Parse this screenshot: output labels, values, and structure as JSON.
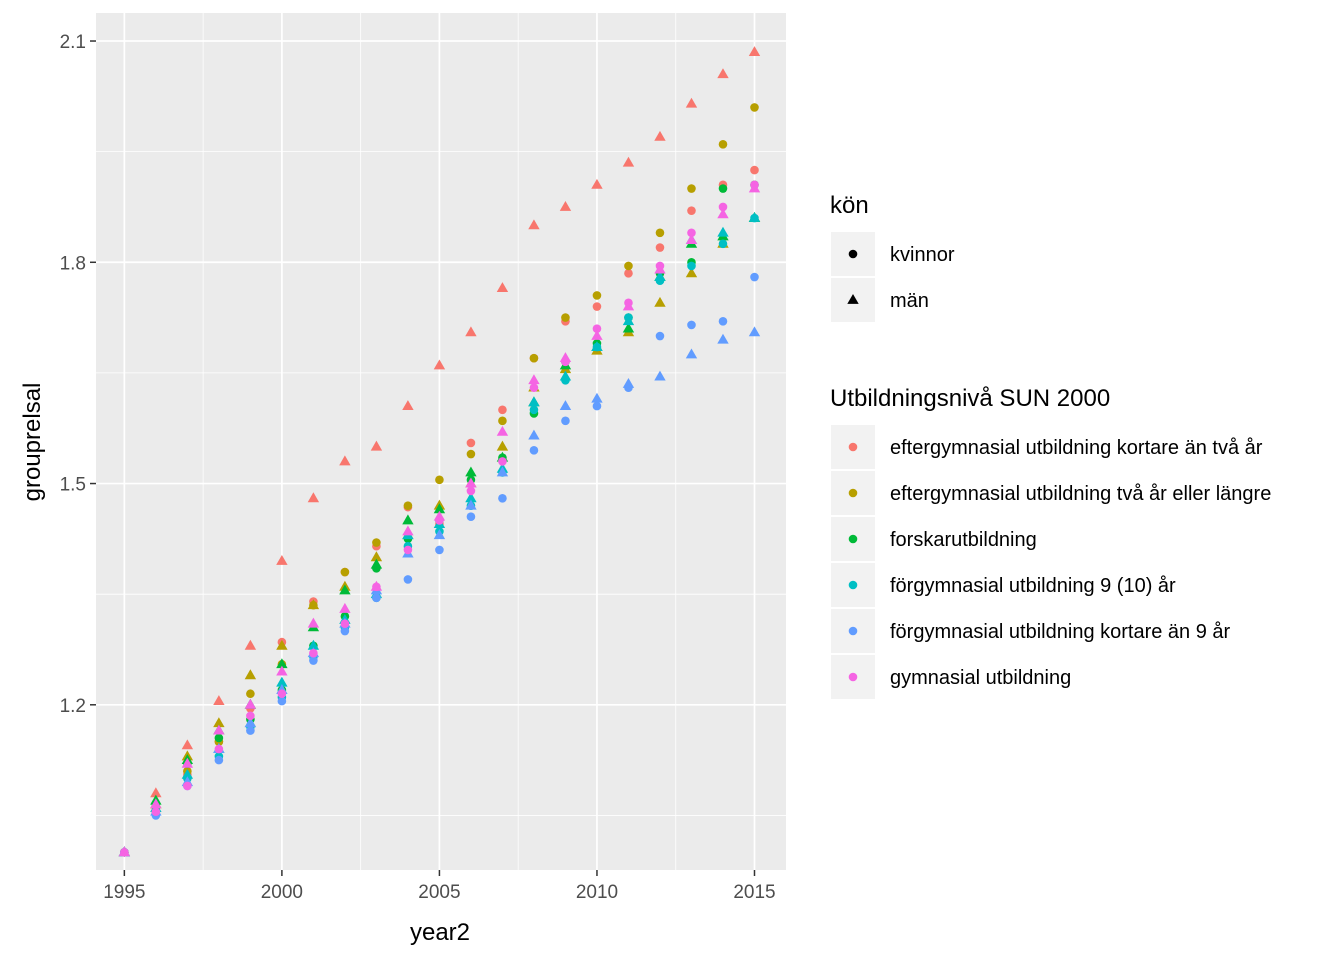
{
  "chart_data": {
    "type": "scatter",
    "title": "",
    "xlabel": "year2",
    "ylabel": "grouprelsal",
    "xlim": [
      1994.1,
      2016
    ],
    "ylim": [
      0.976,
      2.138
    ],
    "x_ticks": [
      "1995",
      "2000",
      "2005",
      "2010",
      "2015"
    ],
    "y_ticks": [
      "1.2",
      "1.5",
      "1.8",
      "2.1"
    ],
    "grid": true,
    "shape_legend": {
      "title": "kön",
      "entries": [
        {
          "label": "kvinnor",
          "shape": "circle"
        },
        {
          "label": "män",
          "shape": "triangle"
        }
      ]
    },
    "color_legend": {
      "title": "Utbildningsnivå SUN 2000",
      "entries": [
        {
          "label": "eftergymnasial utbildning kortare än två år",
          "color": "#F8766D"
        },
        {
          "label": "eftergymnasial utbildning två år eller längre",
          "color": "#B79F00"
        },
        {
          "label": "forskarutbildning",
          "color": "#00BA38"
        },
        {
          "label": "förgymnasial utbildning 9 (10) år",
          "color": "#00BFC4"
        },
        {
          "label": "förgymnasial utbildning kortare än 9 år",
          "color": "#619CFF"
        },
        {
          "label": "gymnasial utbildning",
          "color": "#F564E3"
        }
      ]
    },
    "x": [
      1995,
      1996,
      1997,
      1998,
      1999,
      2000,
      2001,
      2002,
      2003,
      2004,
      2005,
      2006,
      2007,
      2008,
      2009,
      2010,
      2011,
      2012,
      2013,
      2014,
      2015
    ],
    "series": [
      {
        "name": "eftergymnasial utbildning kortare än två år",
        "shape": "circle",
        "values": [
          1.0,
          1.055,
          1.105,
          1.15,
          1.195,
          1.285,
          1.34,
          1.38,
          1.415,
          1.468,
          1.445,
          1.555,
          1.6,
          1.67,
          1.72,
          1.74,
          1.785,
          1.82,
          1.87,
          1.905,
          1.925
        ]
      },
      {
        "name": "eftergymnasial utbildning kortare än två år",
        "shape": "triangle",
        "values": [
          1.0,
          1.08,
          1.145,
          1.205,
          1.28,
          1.395,
          1.48,
          1.53,
          1.55,
          1.605,
          1.66,
          1.705,
          1.765,
          1.85,
          1.875,
          1.905,
          1.935,
          1.97,
          2.015,
          2.055,
          2.085
        ]
      },
      {
        "name": "eftergymnasial utbildning två år eller längre",
        "shape": "circle",
        "values": [
          1.0,
          1.06,
          1.11,
          1.15,
          1.215,
          1.255,
          1.335,
          1.38,
          1.42,
          1.47,
          1.505,
          1.54,
          1.585,
          1.67,
          1.725,
          1.755,
          1.795,
          1.84,
          1.9,
          1.96,
          2.01
        ]
      },
      {
        "name": "eftergymnasial utbildning två år eller längre",
        "shape": "triangle",
        "values": [
          1.0,
          1.065,
          1.13,
          1.175,
          1.24,
          1.28,
          1.335,
          1.36,
          1.4,
          1.43,
          1.47,
          1.5,
          1.55,
          1.63,
          1.655,
          1.68,
          1.705,
          1.745,
          1.785,
          1.825,
          1.86
        ]
      },
      {
        "name": "forskarutbildning",
        "shape": "circle",
        "values": [
          1.0,
          1.065,
          1.12,
          1.155,
          1.18,
          1.22,
          1.28,
          1.32,
          1.385,
          1.425,
          1.45,
          1.505,
          1.535,
          1.595,
          1.665,
          1.69,
          1.725,
          1.785,
          1.8,
          1.9,
          1.905
        ]
      },
      {
        "name": "forskarutbildning",
        "shape": "triangle",
        "values": [
          1.0,
          1.07,
          1.125,
          1.165,
          1.2,
          1.255,
          1.305,
          1.355,
          1.39,
          1.45,
          1.465,
          1.515,
          1.535,
          1.61,
          1.66,
          1.685,
          1.71,
          1.78,
          1.825,
          1.835,
          1.86
        ]
      },
      {
        "name": "förgymnasial utbildning 9 (10) år",
        "shape": "circle",
        "values": [
          1.0,
          1.055,
          1.1,
          1.13,
          1.17,
          1.21,
          1.265,
          1.305,
          1.345,
          1.415,
          1.435,
          1.47,
          1.515,
          1.6,
          1.64,
          1.685,
          1.725,
          1.775,
          1.795,
          1.825,
          1.86
        ]
      },
      {
        "name": "förgymnasial utbildning 9 (10) år",
        "shape": "triangle",
        "values": [
          1.0,
          1.06,
          1.105,
          1.14,
          1.175,
          1.23,
          1.28,
          1.315,
          1.35,
          1.43,
          1.445,
          1.48,
          1.52,
          1.61,
          1.645,
          1.685,
          1.72,
          1.78,
          1.83,
          1.84,
          1.86
        ]
      },
      {
        "name": "förgymnasial utbildning kortare än 9 år",
        "shape": "circle",
        "values": [
          1.0,
          1.05,
          1.09,
          1.125,
          1.165,
          1.205,
          1.26,
          1.3,
          1.345,
          1.37,
          1.41,
          1.455,
          1.48,
          1.545,
          1.585,
          1.605,
          1.63,
          1.7,
          1.715,
          1.72,
          1.78
        ]
      },
      {
        "name": "förgymnasial utbildning kortare än 9 år",
        "shape": "triangle",
        "values": [
          1.0,
          1.055,
          1.095,
          1.14,
          1.175,
          1.22,
          1.27,
          1.31,
          1.355,
          1.405,
          1.43,
          1.47,
          1.515,
          1.565,
          1.605,
          1.615,
          1.635,
          1.645,
          1.675,
          1.695,
          1.705
        ]
      },
      {
        "name": "gymnasial utbildning",
        "shape": "circle",
        "values": [
          1.0,
          1.055,
          1.09,
          1.14,
          1.185,
          1.215,
          1.27,
          1.31,
          1.36,
          1.41,
          1.45,
          1.49,
          1.53,
          1.63,
          1.665,
          1.71,
          1.745,
          1.795,
          1.84,
          1.875,
          1.905
        ]
      },
      {
        "name": "gymnasial utbildning",
        "shape": "triangle",
        "values": [
          1.0,
          1.065,
          1.12,
          1.165,
          1.2,
          1.245,
          1.31,
          1.33,
          1.36,
          1.435,
          1.455,
          1.5,
          1.57,
          1.64,
          1.67,
          1.7,
          1.74,
          1.79,
          1.83,
          1.865,
          1.9
        ]
      }
    ]
  }
}
